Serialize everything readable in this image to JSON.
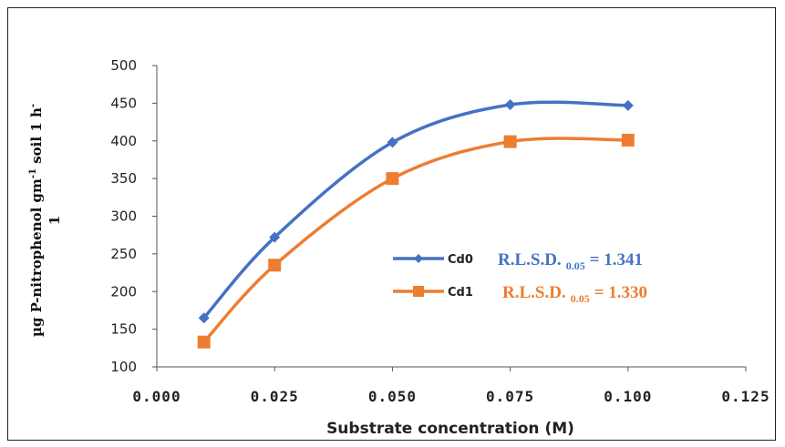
{
  "chart_data": {
    "type": "line",
    "x": [
      0.01,
      0.025,
      0.05,
      0.075,
      0.1
    ],
    "series": [
      {
        "name": "Cd0",
        "values": [
          165,
          272,
          398,
          448,
          447
        ],
        "color": "#4472C4",
        "marker": "diamond"
      },
      {
        "name": "Cd1",
        "values": [
          133,
          235,
          350,
          399,
          401
        ],
        "color": "#ED7D31",
        "marker": "square"
      }
    ],
    "xlabel": "Substrate concentration (M)",
    "ylabel_parts": {
      "main": "µg P-nitrophenol gm",
      "sup1": "-1",
      "mid": " soil 1 h",
      "sup2": "-",
      "wrap": "1"
    },
    "xlim": [
      0.0,
      0.125
    ],
    "ylim": [
      100,
      500
    ],
    "x_ticks": [
      "0.000",
      "0.025",
      "0.050",
      "0.075",
      "0.100",
      "0.125"
    ],
    "y_ticks": [
      "100",
      "150",
      "200",
      "250",
      "300",
      "350",
      "400",
      "450",
      "500"
    ],
    "legend_position": "inside-right",
    "smooth": true,
    "grid": false,
    "annotations": [
      {
        "prefix": "R.L.S.D.",
        "sub": "0.05",
        "suffix": "= 1.341",
        "color": "#4472C4"
      },
      {
        "prefix": "R.L.S.D.",
        "sub": "0.05",
        "suffix": "= 1.330",
        "color": "#ED7D31"
      }
    ]
  }
}
